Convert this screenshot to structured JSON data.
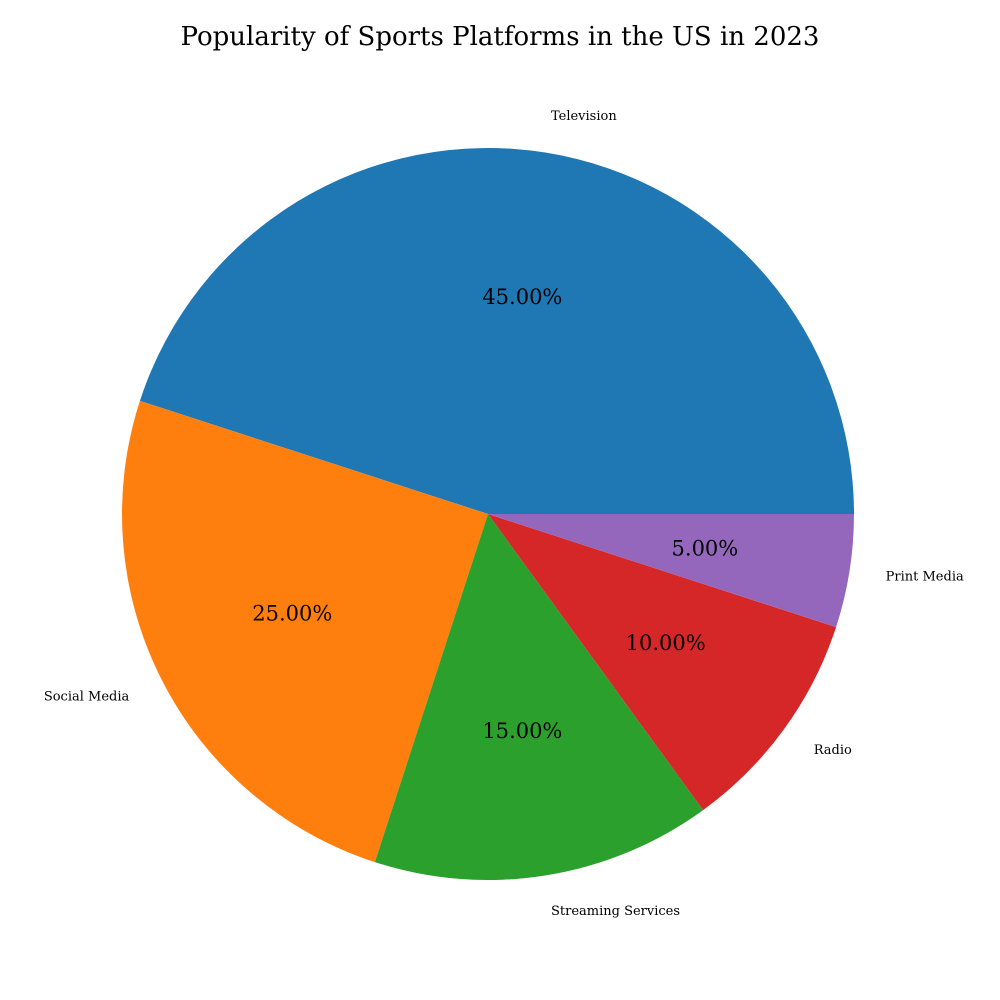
{
  "chart_data": {
    "type": "pie",
    "title": "Popularity of Sports Platforms in the US in 2023",
    "categories": [
      "Television",
      "Social Media",
      "Streaming Services",
      "Radio",
      "Print Media"
    ],
    "values": [
      45,
      25,
      15,
      10,
      5
    ],
    "value_labels": [
      "45.00%",
      "25.00%",
      "15.00%",
      "10.00%",
      "5.00%"
    ],
    "colors": [
      "#1f77b4",
      "#ff7f0e",
      "#2ca02c",
      "#d62728",
      "#9467bd"
    ],
    "start_angle_deg": 0,
    "direction": "counterclockwise",
    "legend": "none"
  }
}
